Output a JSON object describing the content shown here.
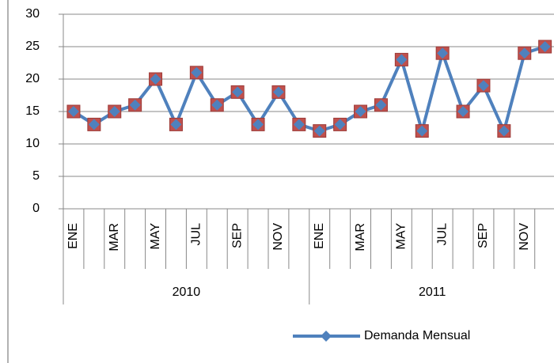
{
  "chart_data": {
    "type": "line",
    "categories": [
      "ENE",
      null,
      "MAR",
      null,
      "MAY",
      null,
      "JUL",
      null,
      "SEP",
      null,
      "NOV",
      null,
      "ENE",
      null,
      "MAR",
      null,
      "MAY",
      null,
      "JUL",
      null,
      "SEP",
      null,
      "NOV",
      null
    ],
    "groups": [
      "2010",
      "2011"
    ],
    "series": [
      {
        "name": "Demanda Mensual",
        "color": "#4f81bd",
        "marker_color": "#c0504d",
        "values": [
          15,
          13,
          15,
          16,
          20,
          13,
          21,
          16,
          18,
          13,
          18,
          13,
          12,
          13,
          15,
          16,
          23,
          12,
          24,
          15,
          19,
          12,
          24,
          25
        ]
      }
    ],
    "ylim": [
      0,
      30
    ],
    "yticks": [
      0,
      5,
      10,
      15,
      20,
      25,
      30
    ],
    "grid": true,
    "legend": "bottom"
  }
}
